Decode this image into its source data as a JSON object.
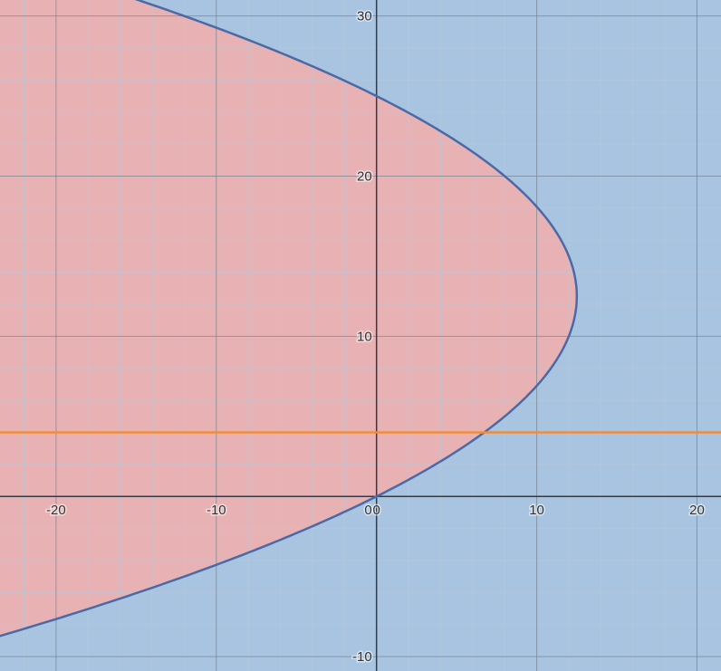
{
  "chart_data": {
    "type": "area",
    "xlim": [
      -23.5,
      21.5
    ],
    "ylim": [
      -10.9,
      31.0
    ],
    "x_ticks": [
      -20,
      -10,
      0,
      10,
      20
    ],
    "y_ticks": [
      -10,
      10,
      20,
      30
    ],
    "x_tick_labels": [
      "-20",
      "-10",
      "0",
      "10",
      "20"
    ],
    "y_tick_labels": [
      "-10",
      "10",
      "20",
      "30"
    ],
    "origin_label": "0",
    "grid": true,
    "minor_grid_step": 2,
    "major_grid_step": 10,
    "series": [
      {
        "kind": "parabola",
        "vertex": [
          12.5,
          12.5
        ],
        "passes_through": [
          [
            0,
            0
          ],
          [
            0,
            25
          ]
        ],
        "x_of_y": {
          "a": -0.08,
          "b": 2,
          "c": 0
        },
        "fill_inside": "#e8b2b5",
        "stroke": "#4a6aa6"
      },
      {
        "kind": "horizontal-line",
        "y": 4,
        "stroke": "#f28c3a"
      }
    ],
    "outside_fill": "#a9c4e0"
  },
  "colors": {
    "major_grid": "#7b8593",
    "minor_grid": "#b6c7d9",
    "axis": "#333a44",
    "tick_text": "#333333"
  }
}
